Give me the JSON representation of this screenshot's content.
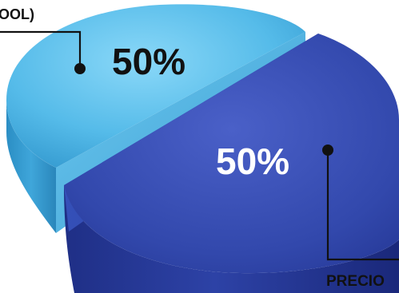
{
  "chart_data": {
    "type": "pie",
    "title": "",
    "slices": [
      {
        "label": "OOL)",
        "value": 50,
        "value_label": "50%",
        "color": "#52b8e8"
      },
      {
        "label": "PRECIO",
        "value": 50,
        "value_label": "50%",
        "color": "#2e44a8"
      }
    ],
    "legend": "none",
    "style": "3d-exploded"
  }
}
